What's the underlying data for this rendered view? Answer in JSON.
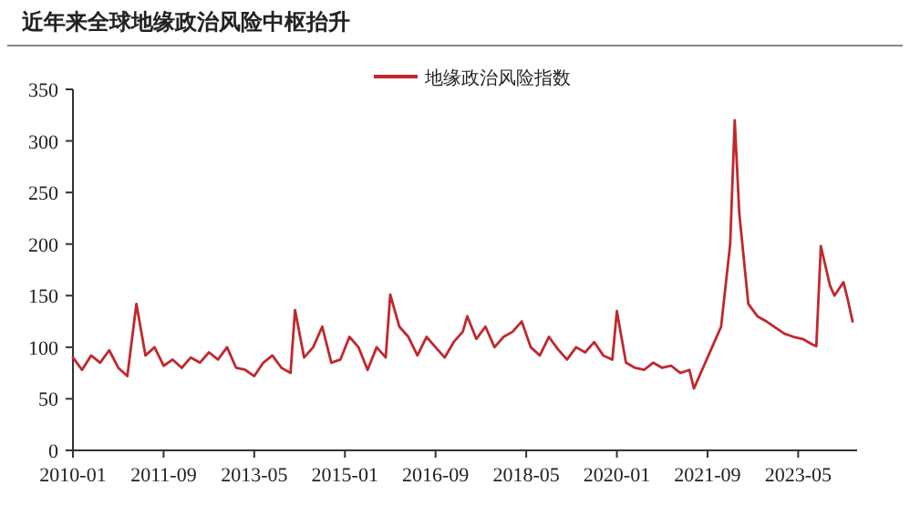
{
  "chart_data": {
    "type": "line",
    "title": "近年来全球地缘政治风险中枢抬升",
    "legend": "top",
    "grid": false,
    "marker": "none",
    "line_style": "solid",
    "xlim": [
      "2010-01",
      "2024-06"
    ],
    "ylim": [
      0,
      350
    ],
    "yticks": [
      0,
      50,
      100,
      150,
      200,
      250,
      300,
      350
    ],
    "xticks": [
      {
        "value": "2010-01",
        "label": "2010-01"
      },
      {
        "value": "2011-09",
        "label": "2011-09"
      },
      {
        "value": "2013-05",
        "label": "2013-05"
      },
      {
        "value": "2015-01",
        "label": "2015-01"
      },
      {
        "value": "2016-09",
        "label": "2016-09"
      },
      {
        "value": "2018-05",
        "label": "2018-05"
      },
      {
        "value": "2020-01",
        "label": "2020-01"
      },
      {
        "value": "2021-09",
        "label": "2021-09"
      },
      {
        "value": "2023-05",
        "label": "2023-05"
      }
    ],
    "x": [
      "2010-01",
      "2010-03",
      "2010-05",
      "2010-07",
      "2010-09",
      "2010-11",
      "2011-01",
      "2011-03",
      "2011-05",
      "2011-07",
      "2011-09",
      "2011-11",
      "2012-01",
      "2012-03",
      "2012-05",
      "2012-07",
      "2012-09",
      "2012-11",
      "2013-01",
      "2013-03",
      "2013-05",
      "2013-07",
      "2013-09",
      "2013-11",
      "2014-01",
      "2014-02",
      "2014-04",
      "2014-06",
      "2014-08",
      "2014-10",
      "2014-12",
      "2015-02",
      "2015-04",
      "2015-06",
      "2015-08",
      "2015-10",
      "2015-11",
      "2016-01",
      "2016-03",
      "2016-05",
      "2016-07",
      "2016-09",
      "2016-11",
      "2017-01",
      "2017-03",
      "2017-04",
      "2017-06",
      "2017-08",
      "2017-10",
      "2017-12",
      "2018-02",
      "2018-04",
      "2018-06",
      "2018-08",
      "2018-10",
      "2018-12",
      "2019-02",
      "2019-04",
      "2019-06",
      "2019-08",
      "2019-10",
      "2019-12",
      "2020-01",
      "2020-03",
      "2020-05",
      "2020-07",
      "2020-09",
      "2020-11",
      "2021-01",
      "2021-03",
      "2021-05",
      "2021-06",
      "2021-08",
      "2021-10",
      "2021-12",
      "2022-02",
      "2022-03",
      "2022-04",
      "2022-06",
      "2022-08",
      "2022-10",
      "2022-12",
      "2023-02",
      "2023-04",
      "2023-06",
      "2023-08",
      "2023-09",
      "2023-10",
      "2023-12",
      "2024-01",
      "2024-03",
      "2024-04",
      "2024-05"
    ],
    "series": [
      {
        "name": "地缘政治风险指数",
        "color": "#c0282d",
        "values": [
          90,
          78,
          92,
          85,
          97,
          80,
          72,
          142,
          92,
          100,
          82,
          88,
          80,
          90,
          85,
          95,
          88,
          100,
          80,
          78,
          72,
          85,
          92,
          80,
          75,
          136,
          90,
          100,
          120,
          85,
          88,
          110,
          100,
          78,
          100,
          90,
          151,
          120,
          110,
          92,
          110,
          100,
          90,
          105,
          115,
          130,
          108,
          120,
          100,
          110,
          115,
          125,
          100,
          92,
          110,
          98,
          88,
          100,
          95,
          105,
          92,
          88,
          135,
          85,
          80,
          78,
          85,
          80,
          82,
          75,
          78,
          60,
          80,
          100,
          120,
          200,
          320,
          230,
          142,
          130,
          125,
          119,
          113,
          110,
          108,
          103,
          101,
          198,
          160,
          150,
          163,
          145,
          125
        ]
      }
    ]
  }
}
